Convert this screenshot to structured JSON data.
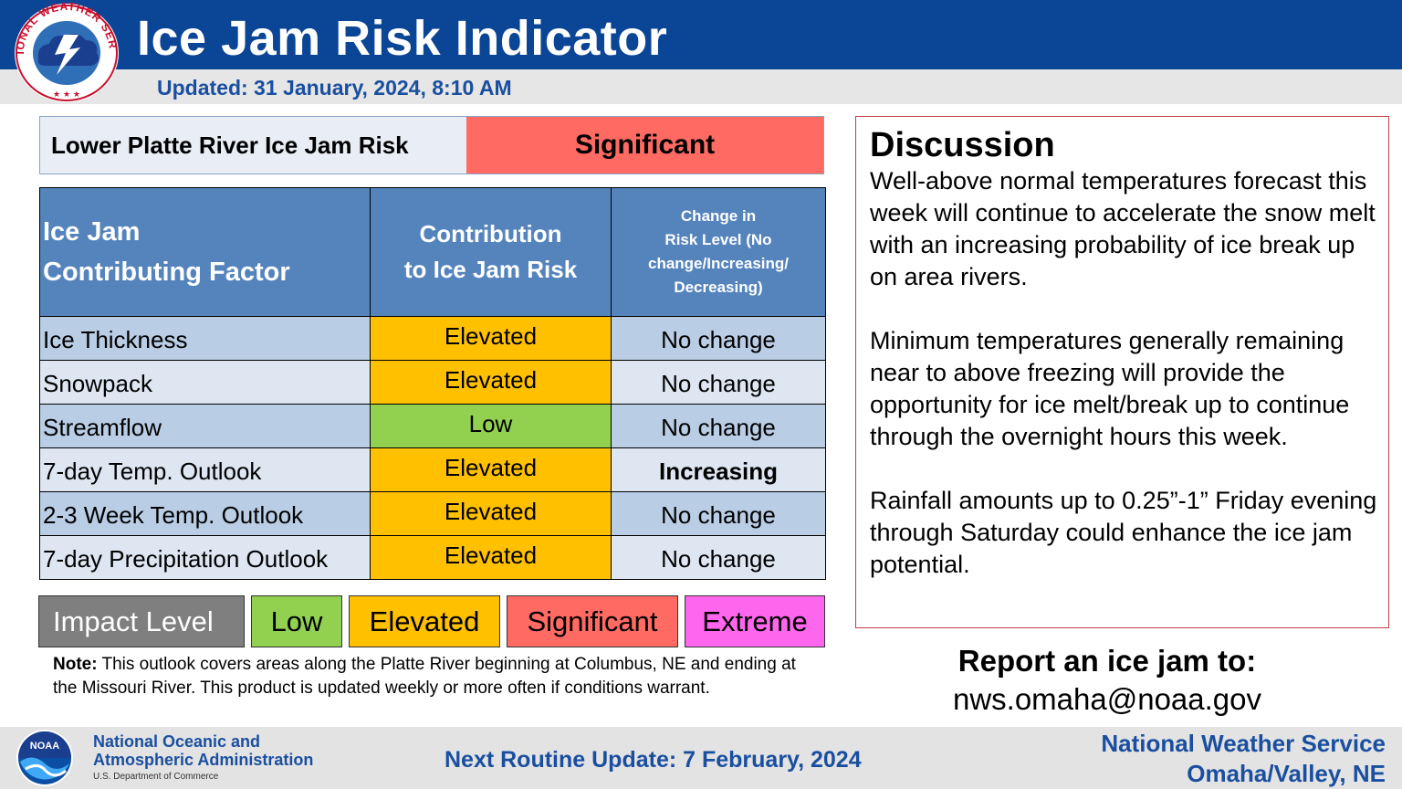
{
  "header": {
    "title": "Ice Jam Risk Indicator",
    "updated": "Updated: 31 January, 2024, 8:10 AM",
    "logo_text": "NATIONAL WEATHER SERVICE"
  },
  "risk": {
    "label": "Lower Platte River Ice Jam Risk",
    "value": "Significant"
  },
  "table": {
    "headers": {
      "factor": [
        "Ice Jam",
        "Contributing Factor"
      ],
      "contribution": [
        "Contribution",
        "to Ice Jam Risk"
      ],
      "change": [
        "Change in",
        "Risk Level (No",
        "change/Increasing/",
        "Decreasing)"
      ]
    },
    "rows": [
      {
        "factor": "Ice Thickness",
        "contribution": "Elevated",
        "contribution_color": "#ffc000",
        "change": "No change",
        "change_bold": false
      },
      {
        "factor": "Snowpack",
        "contribution": "Elevated",
        "contribution_color": "#ffc000",
        "change": "No change",
        "change_bold": false
      },
      {
        "factor": "Streamflow",
        "contribution": "Low",
        "contribution_color": "#92d050",
        "change": "No change",
        "change_bold": false
      },
      {
        "factor": "7-day Temp. Outlook",
        "contribution": "Elevated",
        "contribution_color": "#ffc000",
        "change": "Increasing",
        "change_bold": true
      },
      {
        "factor": "2-3 Week Temp. Outlook",
        "contribution": "Elevated",
        "contribution_color": "#ffc000",
        "change": "No change",
        "change_bold": false
      },
      {
        "factor": "7-day Precipitation Outlook",
        "contribution": "Elevated",
        "contribution_color": "#ffc000",
        "change": "No change",
        "change_bold": false
      }
    ]
  },
  "legend": {
    "title": "Impact Level",
    "levels": [
      {
        "label": "Low",
        "color": "#92d050"
      },
      {
        "label": "Elevated",
        "color": "#ffc000"
      },
      {
        "label": "Significant",
        "color": "#ff6b63"
      },
      {
        "label": "Extreme",
        "color": "#ff66ee"
      }
    ]
  },
  "note": {
    "prefix": "Note:",
    "text": " This outlook covers areas along the Platte River beginning at Columbus, NE and ending at the Missouri River. This product is updated weekly or more often if conditions warrant."
  },
  "discussion": {
    "title": "Discussion",
    "paragraphs": [
      "Well-above normal temperatures forecast this week will continue to accelerate the snow melt with an increasing probability of ice break up on area rivers.",
      "Minimum temperatures generally remaining near to above freezing will provide the opportunity for ice melt/break up to continue through the overnight hours this week.",
      "Rainfall amounts up to 0.25”-1” Friday evening through Saturday could enhance the ice jam potential."
    ]
  },
  "report": {
    "label": "Report an ice jam to:",
    "email": "nws.omaha@noaa.gov"
  },
  "footer": {
    "noaa_logo_text": "NOAA",
    "noaa_name_line1": "National Oceanic and",
    "noaa_name_line2": "Atmospheric Administration",
    "noaa_dept": "U.S. Department of Commerce",
    "next_update": "Next Routine Update: 7 February, 2024",
    "office_line1": "National Weather Service",
    "office_line2": "Omaha/Valley, NE"
  },
  "colors": {
    "header_blue": "#0b4596",
    "table_header": "#5584bd",
    "row_light": "#dde6f1",
    "row_dark": "#b9cde5",
    "text_blue": "#1a4fa0"
  }
}
